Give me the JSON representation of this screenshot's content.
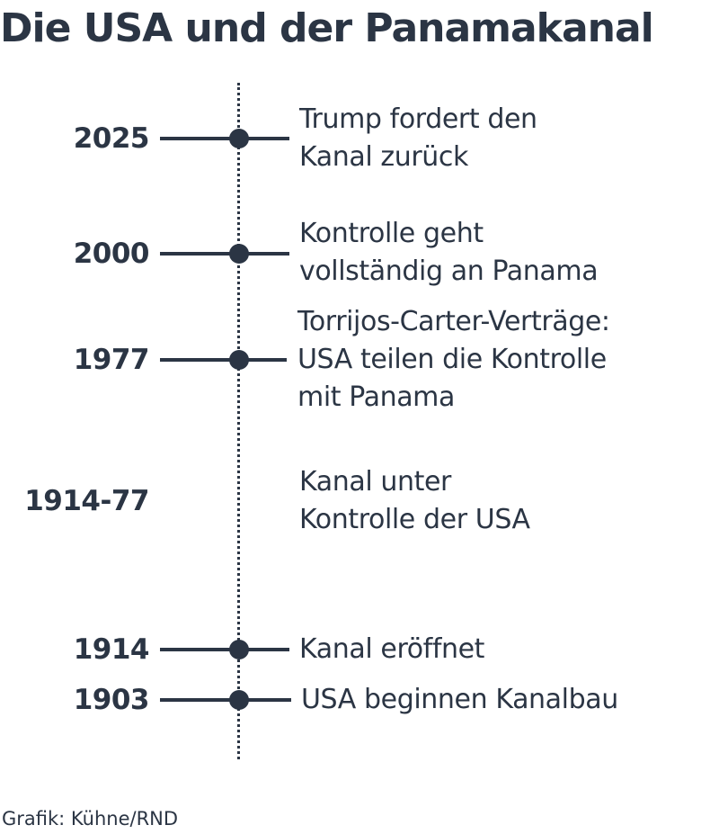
{
  "title": "Die USA und der Panamakanal",
  "credit": "Grafik: Kühne/RND",
  "events": [
    {
      "year": "2025",
      "lines": [
        "Trump fordert den",
        "Kanal zurück"
      ],
      "marker": true
    },
    {
      "year": "2000",
      "lines": [
        "Kontrolle geht",
        "vollständig an Panama"
      ],
      "marker": true
    },
    {
      "year": "1977",
      "lines": [
        "Torrijos-Carter-Verträge:",
        "USA teilen die Kontrolle",
        "mit Panama"
      ],
      "marker": true
    },
    {
      "year": "1914-77",
      "lines": [
        "Kanal unter",
        "Kontrolle der USA"
      ],
      "marker": false
    },
    {
      "year": "1914",
      "lines": [
        "Kanal eröffnet"
      ],
      "marker": true
    },
    {
      "year": "1903",
      "lines": [
        "USA beginnen Kanalbau"
      ],
      "marker": true
    }
  ],
  "colors": {
    "ink": "#2b3544",
    "background": "#ffffff"
  }
}
